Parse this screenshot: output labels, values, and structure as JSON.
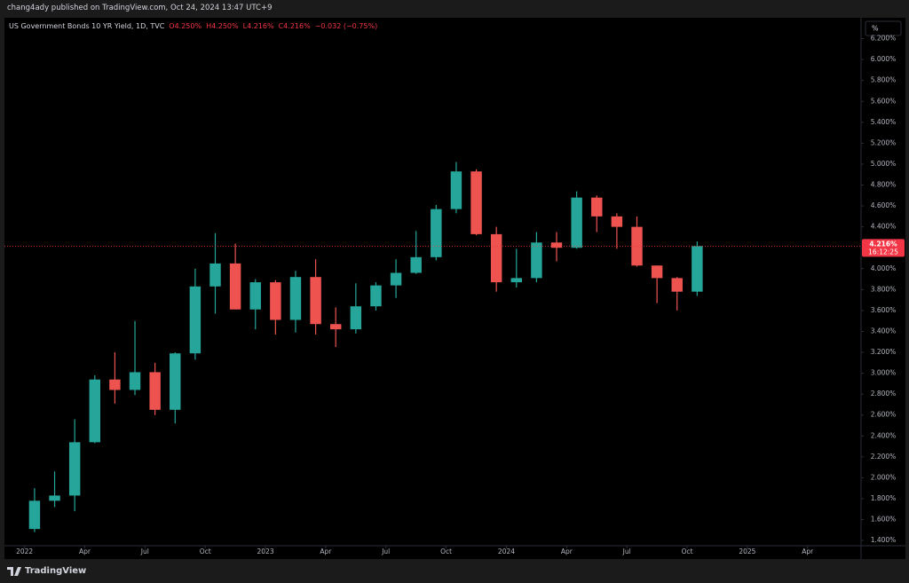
{
  "header": {
    "published": "chang4ady published on TradingView.com, Oct 24, 2024 13:47 UTC+9",
    "scale_button": "%",
    "brand": "TradingView"
  },
  "chart_data": {
    "type": "candlestick",
    "ohlc_header": [
      "O4.250%",
      "H4.250%",
      "L4.216%",
      "C4.216%",
      "−0.032 (−0.75%)"
    ],
    "last": {
      "value": 4.216,
      "label": "4.216%"
    },
    "countdown": "16:12:25",
    "last_color": "#f23645",
    "x": [
      "2022-01",
      "2022-02",
      "2022-03",
      "2022-04",
      "2022-05",
      "2022-06",
      "2022-07",
      "2022-08",
      "2022-09",
      "2022-10",
      "2022-11",
      "2022-12",
      "2023-01",
      "2023-02",
      "2023-03",
      "2023-04",
      "2023-05",
      "2023-06",
      "2023-07",
      "2023-08",
      "2023-09",
      "2023-10",
      "2023-11",
      "2023-12",
      "2024-01",
      "2024-02",
      "2024-03",
      "2024-04",
      "2024-05",
      "2024-06",
      "2024-07",
      "2024-08",
      "2024-09",
      "2024-10"
    ],
    "series": [
      {
        "name": "US Government Bonds 10 YR Yield, 1D, TVC",
        "up_color": "#26a69a",
        "down_color": "#ef5350",
        "open": [
          1.51,
          1.78,
          1.83,
          2.34,
          2.94,
          2.84,
          3.01,
          2.65,
          3.19,
          3.83,
          4.05,
          3.61,
          3.87,
          3.51,
          3.92,
          3.47,
          3.42,
          3.64,
          3.84,
          3.96,
          4.11,
          4.57,
          4.93,
          4.33,
          3.87,
          3.91,
          4.25,
          4.2,
          4.68,
          4.5,
          4.4,
          4.03,
          3.91,
          3.78
        ],
        "high": [
          1.9,
          2.06,
          2.56,
          2.98,
          3.2,
          3.5,
          3.1,
          3.2,
          4.0,
          4.34,
          4.24,
          3.9,
          3.89,
          3.98,
          4.09,
          3.63,
          3.86,
          3.87,
          4.09,
          4.36,
          4.61,
          5.02,
          4.95,
          4.4,
          4.19,
          4.35,
          4.35,
          4.74,
          4.7,
          4.53,
          4.5,
          4.03,
          3.92,
          4.26
        ],
        "low": [
          1.48,
          1.72,
          1.68,
          2.33,
          2.71,
          2.79,
          2.6,
          2.52,
          3.13,
          3.57,
          3.61,
          3.42,
          3.37,
          3.39,
          3.37,
          3.25,
          3.38,
          3.6,
          3.72,
          3.95,
          4.08,
          4.53,
          4.32,
          3.78,
          3.82,
          3.87,
          4.07,
          4.19,
          4.35,
          4.19,
          4.02,
          3.67,
          3.6,
          3.74
        ],
        "close": [
          1.78,
          1.83,
          2.34,
          2.94,
          2.84,
          3.01,
          2.65,
          3.19,
          3.83,
          4.05,
          3.61,
          3.87,
          3.51,
          3.92,
          3.47,
          3.42,
          3.64,
          3.84,
          3.96,
          4.11,
          4.57,
          4.93,
          4.33,
          3.87,
          3.91,
          4.25,
          4.2,
          4.68,
          4.5,
          4.4,
          4.03,
          3.91,
          3.78,
          4.216
        ]
      }
    ],
    "xlim": [
      "2021-12",
      "2025-06"
    ],
    "xticks": [
      {
        "value": "2022-01",
        "label": "2022"
      },
      {
        "value": "2022-04",
        "label": "Apr"
      },
      {
        "value": "2022-07",
        "label": "Jul"
      },
      {
        "value": "2022-10",
        "label": "Oct"
      },
      {
        "value": "2023-01",
        "label": "2023"
      },
      {
        "value": "2023-04",
        "label": "Apr"
      },
      {
        "value": "2023-07",
        "label": "Jul"
      },
      {
        "value": "2023-10",
        "label": "Oct"
      },
      {
        "value": "2024-01",
        "label": "2024"
      },
      {
        "value": "2024-04",
        "label": "Apr"
      },
      {
        "value": "2024-07",
        "label": "Jul"
      },
      {
        "value": "2024-10",
        "label": "Oct"
      },
      {
        "value": "2025-01",
        "label": "2025"
      },
      {
        "value": "2025-04",
        "label": "Apr"
      }
    ],
    "ylim": [
      1.35,
      6.4
    ],
    "yticks": [
      {
        "value": 1.4,
        "label": "1.400%"
      },
      {
        "value": 1.6,
        "label": "1.600%"
      },
      {
        "value": 1.8,
        "label": "1.800%"
      },
      {
        "value": 2.0,
        "label": "2.000%"
      },
      {
        "value": 2.2,
        "label": "2.200%"
      },
      {
        "value": 2.4,
        "label": "2.400%"
      },
      {
        "value": 2.6,
        "label": "2.600%"
      },
      {
        "value": 2.8,
        "label": "2.800%"
      },
      {
        "value": 3.0,
        "label": "3.000%"
      },
      {
        "value": 3.2,
        "label": "3.200%"
      },
      {
        "value": 3.4,
        "label": "3.400%"
      },
      {
        "value": 3.6,
        "label": "3.600%"
      },
      {
        "value": 3.8,
        "label": "3.800%"
      },
      {
        "value": 4.0,
        "label": "4.000%"
      },
      {
        "value": 4.2,
        "label": "4.200%"
      },
      {
        "value": 4.4,
        "label": "4.400%"
      },
      {
        "value": 4.6,
        "label": "4.600%"
      },
      {
        "value": 4.8,
        "label": "4.800%"
      },
      {
        "value": 5.0,
        "label": "5.000%"
      },
      {
        "value": 5.2,
        "label": "5.200%"
      },
      {
        "value": 5.4,
        "label": "5.400%"
      },
      {
        "value": 5.6,
        "label": "5.600%"
      },
      {
        "value": 5.8,
        "label": "5.800%"
      },
      {
        "value": 6.0,
        "label": "6.000%"
      },
      {
        "value": 6.2,
        "label": "6.200%"
      }
    ],
    "grid": false
  }
}
